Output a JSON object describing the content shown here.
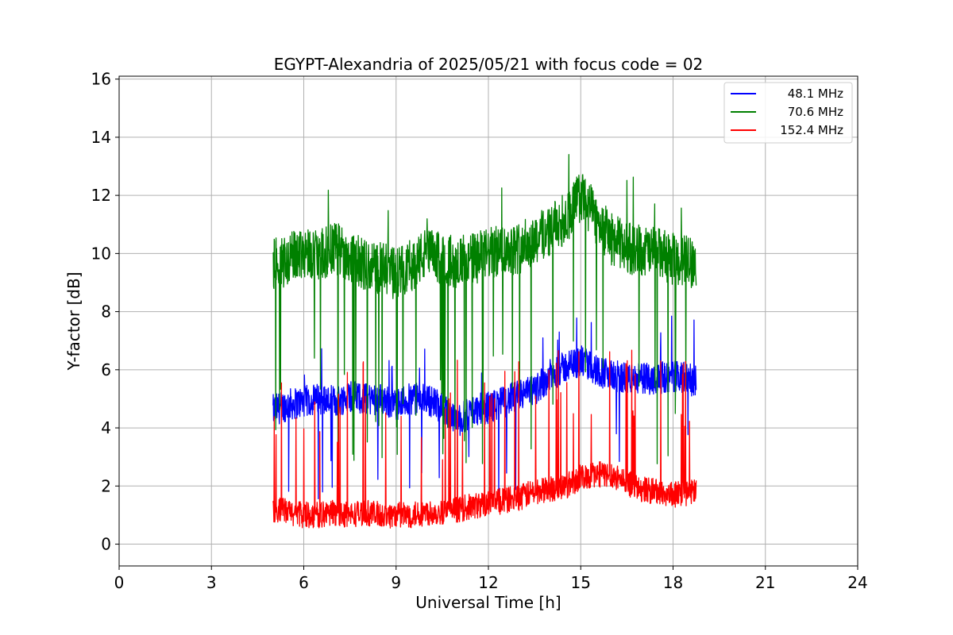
{
  "chart_data": {
    "type": "line",
    "title": "EGYPT-Alexandria of 2025/05/21 with focus code = 02",
    "xlabel": "Universal Time [h]",
    "ylabel": "Y-factor [dB]",
    "xlim": [
      0,
      24
    ],
    "ylim": [
      -0.75,
      16.1
    ],
    "xticks": [
      0,
      3,
      6,
      9,
      12,
      15,
      18,
      21,
      24
    ],
    "yticks": [
      0,
      2,
      4,
      6,
      8,
      10,
      12,
      14,
      16
    ],
    "grid": true,
    "legend_position": "top-right",
    "series": [
      {
        "name": "48.1 MHz",
        "color": "#0000ff",
        "x": [
          5.0,
          5.5,
          6.0,
          6.5,
          7.0,
          7.5,
          8.0,
          8.5,
          9.0,
          9.5,
          10.0,
          10.5,
          11.0,
          11.5,
          12.0,
          12.5,
          13.0,
          13.5,
          14.0,
          14.5,
          15.0,
          15.5,
          16.0,
          16.5,
          17.0,
          17.5,
          18.0,
          18.75
        ],
        "y": [
          4.6,
          4.8,
          4.9,
          5.0,
          4.9,
          5.1,
          5.0,
          5.0,
          4.8,
          5.0,
          5.0,
          4.7,
          4.2,
          4.6,
          4.7,
          4.9,
          5.1,
          5.3,
          5.8,
          6.1,
          6.3,
          6.0,
          5.8,
          5.7,
          5.7,
          5.7,
          5.8,
          5.6
        ]
      },
      {
        "name": "70.6 MHz",
        "color": "#008000",
        "x": [
          5.0,
          5.5,
          6.0,
          6.5,
          7.0,
          7.5,
          8.0,
          8.5,
          9.0,
          9.5,
          10.0,
          10.5,
          11.0,
          11.5,
          12.0,
          12.5,
          13.0,
          13.5,
          14.0,
          14.5,
          15.0,
          15.5,
          16.0,
          16.5,
          17.0,
          17.5,
          18.0,
          18.75
        ],
        "y": [
          9.6,
          9.8,
          10.1,
          9.9,
          10.2,
          9.9,
          9.6,
          9.5,
          9.3,
          9.6,
          10.0,
          9.8,
          9.7,
          9.8,
          10.0,
          10.1,
          10.2,
          10.5,
          10.8,
          11.2,
          12.0,
          11.2,
          10.5,
          10.2,
          10.1,
          10.0,
          9.8,
          9.7
        ]
      },
      {
        "name": "152.4 MHz",
        "color": "#ff0000",
        "x": [
          5.0,
          5.5,
          6.0,
          6.5,
          7.0,
          7.5,
          8.0,
          8.5,
          9.0,
          9.5,
          10.0,
          10.5,
          11.0,
          11.5,
          12.0,
          12.5,
          13.0,
          13.5,
          14.0,
          14.5,
          15.0,
          15.5,
          16.0,
          16.5,
          17.0,
          17.5,
          18.0,
          18.75
        ],
        "y": [
          1.2,
          1.1,
          1.0,
          1.0,
          1.1,
          1.0,
          1.1,
          1.0,
          1.0,
          1.0,
          1.1,
          1.1,
          1.2,
          1.3,
          1.4,
          1.5,
          1.6,
          1.8,
          1.9,
          2.0,
          2.3,
          2.4,
          2.4,
          2.1,
          1.9,
          1.8,
          1.7,
          1.8
        ]
      }
    ]
  }
}
